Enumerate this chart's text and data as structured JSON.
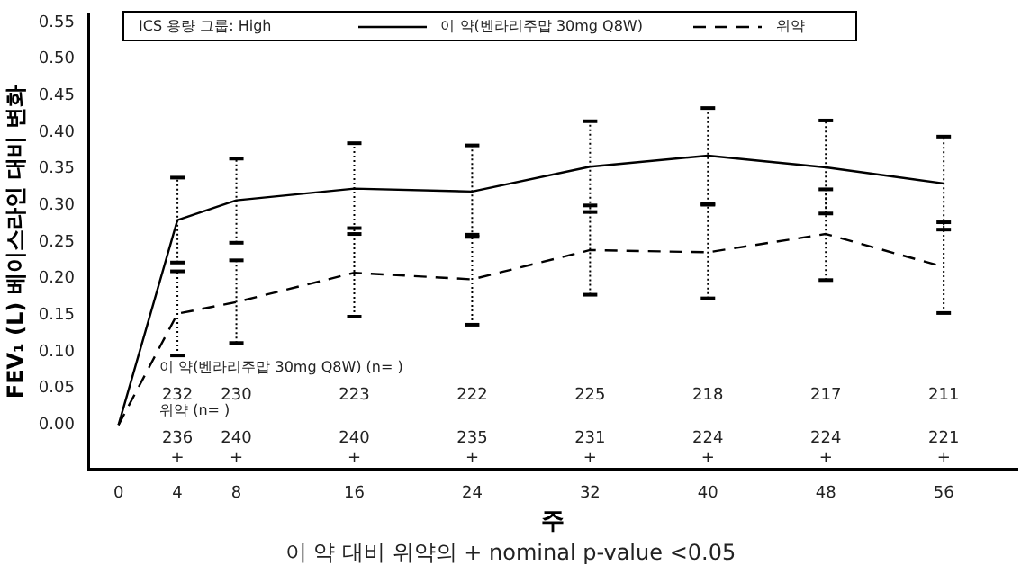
{
  "chart_data": {
    "type": "line",
    "ylabel": "FEV₁ (L) 베이스라인 대비 변화",
    "xlabel": "주",
    "legend_title": "ICS 용량 그룹: High",
    "legend": "top",
    "marker": "none",
    "grid": false,
    "x": [
      0,
      4,
      8,
      16,
      24,
      32,
      40,
      48,
      56
    ],
    "xlim": [
      -2,
      61
    ],
    "xticks": [
      0,
      4,
      8,
      16,
      24,
      32,
      40,
      48,
      56
    ],
    "ylim": [
      -0.06,
      0.56
    ],
    "yticks": [
      {
        "value": 0,
        "label": "0.00"
      },
      {
        "value": 0.05,
        "label": "0.05"
      },
      {
        "value": 0.1,
        "label": "0.10"
      },
      {
        "value": 0.15,
        "label": "0.15"
      },
      {
        "value": 0.2,
        "label": "0.20"
      },
      {
        "value": 0.25,
        "label": "0.25"
      },
      {
        "value": 0.3,
        "label": "0.30"
      },
      {
        "value": 0.35,
        "label": "0.35"
      },
      {
        "value": 0.4,
        "label": "0.40"
      },
      {
        "value": 0.45,
        "label": "0.45"
      },
      {
        "value": 0.5,
        "label": "0.50"
      },
      {
        "value": 0.55,
        "label": "0.55"
      }
    ],
    "series": [
      {
        "name": "이 약(벤라리주맙 30mg Q8W)",
        "color": "#000000",
        "line_style": "solid",
        "values": [
          0,
          0.28,
          0.307,
          0.323,
          0.319,
          0.353,
          0.368,
          0.352,
          0.33
        ],
        "errors": [
          null,
          [
            0.222,
            0.338
          ],
          [
            0.249,
            0.364
          ],
          [
            0.261,
            0.385
          ],
          [
            0.257,
            0.382
          ],
          [
            0.291,
            0.415
          ],
          [
            0.302,
            0.433
          ],
          [
            0.289,
            0.416
          ],
          [
            0.267,
            0.394
          ]
        ]
      },
      {
        "name": "위약",
        "color": "#000000",
        "line_style": "dashed",
        "values": [
          0,
          0.152,
          0.168,
          0.208,
          0.199,
          0.239,
          0.236,
          0.261,
          0.216
        ],
        "errors": [
          null,
          [
            0.095,
            0.21
          ],
          [
            0.112,
            0.225
          ],
          [
            0.148,
            0.269
          ],
          [
            0.137,
            0.26
          ],
          [
            0.178,
            0.3
          ],
          [
            0.173,
            0.301
          ],
          [
            0.198,
            0.322
          ],
          [
            0.153,
            0.277
          ]
        ]
      }
    ],
    "annotations": [
      "이 약(벤라리주맙 30mg Q8W) (n= )",
      "232",
      "230",
      "223",
      "222",
      "225",
      "218",
      "217",
      "211",
      "위약 (n= )",
      "236",
      "240",
      "240",
      "235",
      "231",
      "224",
      "224",
      "221",
      "+",
      "+",
      "+",
      "+",
      "+",
      "+",
      "+",
      "+",
      "이 약 대비 위약의 + nominal p-value <0.05"
    ]
  }
}
